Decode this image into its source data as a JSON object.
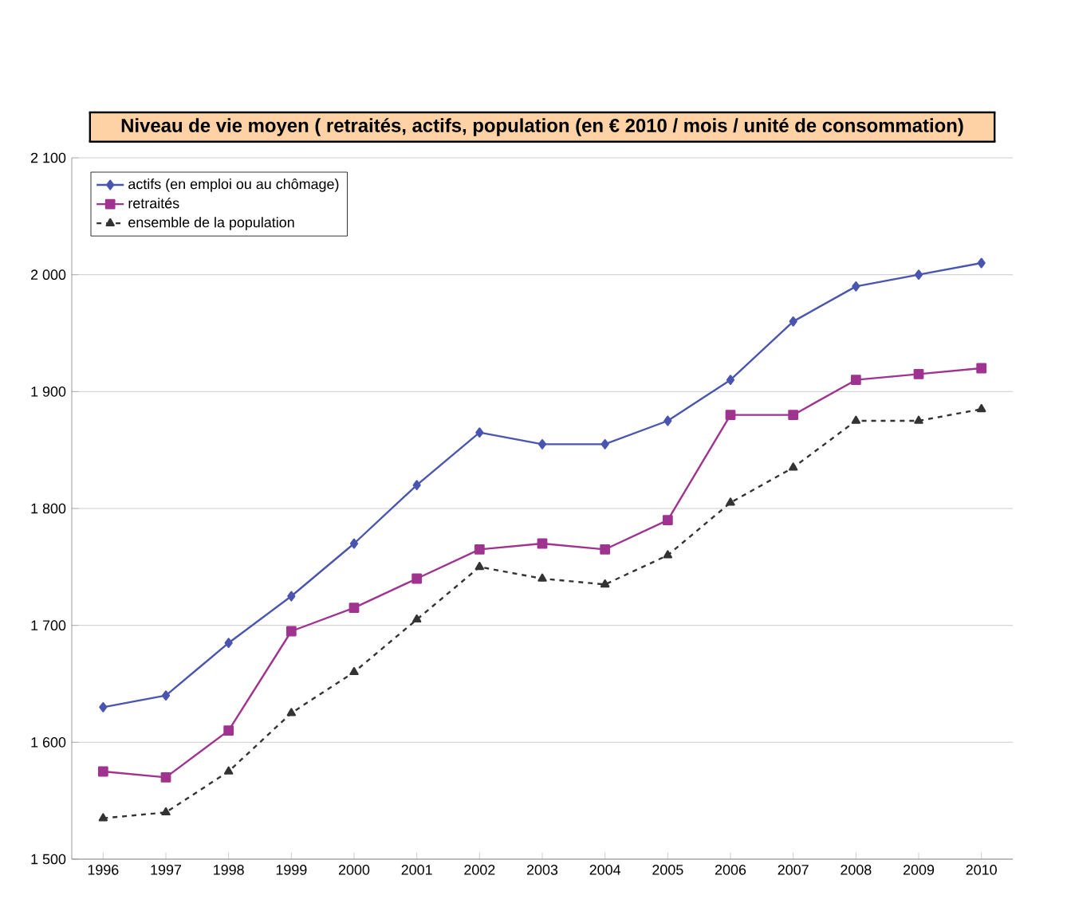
{
  "chart_data": {
    "type": "line",
    "title": "Niveau de vie moyen ( retraités, actifs, population (en € 2010 / mois / unité de consommation)",
    "categories": [
      "1996",
      "1997",
      "1998",
      "1999",
      "2000",
      "2001",
      "2002",
      "2003",
      "2004",
      "2005",
      "2006",
      "2007",
      "2008",
      "2009",
      "2010"
    ],
    "series": [
      {
        "name": "actifs (en emploi ou au chômage)",
        "color": "#4a55b0",
        "marker": "diamond",
        "line_style": "solid",
        "values": [
          1630,
          1640,
          1685,
          1725,
          1770,
          1820,
          1865,
          1855,
          1855,
          1875,
          1910,
          1960,
          1990,
          2000,
          2010
        ]
      },
      {
        "name": "retraités",
        "color": "#a0338f",
        "marker": "square",
        "line_style": "solid",
        "values": [
          1575,
          1570,
          1610,
          1695,
          1715,
          1740,
          1765,
          1770,
          1765,
          1790,
          1880,
          1880,
          1910,
          1915,
          1920
        ]
      },
      {
        "name": "ensemble de la population",
        "color": "#333333",
        "marker": "triangle",
        "line_style": "dashed",
        "values": [
          1535,
          1540,
          1575,
          1625,
          1660,
          1705,
          1750,
          1740,
          1735,
          1760,
          1805,
          1835,
          1875,
          1875,
          1885
        ]
      }
    ],
    "ylim": [
      1500,
      2100
    ],
    "yticks": [
      {
        "value": 1500,
        "label": "1 500"
      },
      {
        "value": 1600,
        "label": "1 600"
      },
      {
        "value": 1700,
        "label": "1 700"
      },
      {
        "value": 1800,
        "label": "1 800"
      },
      {
        "value": 1900,
        "label": "1 900"
      },
      {
        "value": 2000,
        "label": "2 000"
      },
      {
        "value": 2100,
        "label": "2 100"
      }
    ],
    "grid": "y",
    "legend": "top left"
  }
}
